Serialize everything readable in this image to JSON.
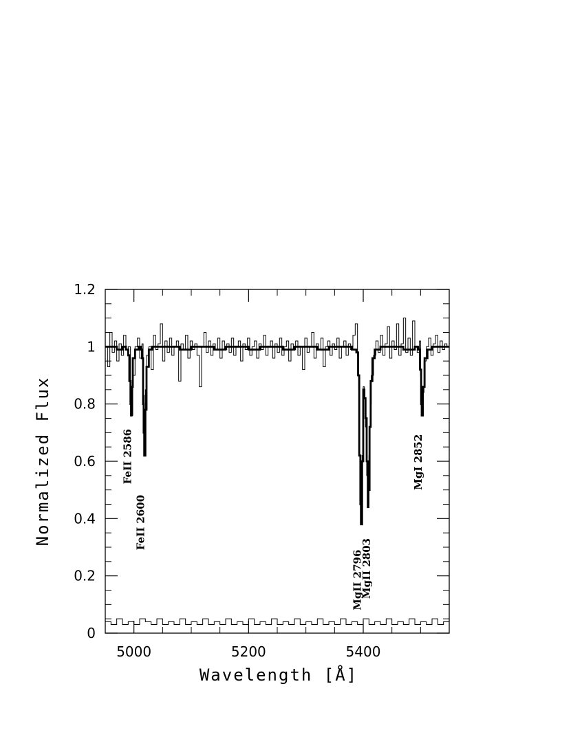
{
  "chart_data": {
    "type": "line",
    "xlabel": "Wavelength [Å]",
    "ylabel": "Normalized Flux",
    "xlim": [
      4950,
      5550
    ],
    "ylim": [
      0,
      1.2
    ],
    "x_ticks": [
      {
        "value": 5000,
        "label": "5000"
      },
      {
        "value": 5200,
        "label": "5200"
      },
      {
        "value": 5400,
        "label": "5400"
      }
    ],
    "y_ticks": [
      {
        "value": 0,
        "label": "0"
      },
      {
        "value": 0.2,
        "label": "0.2"
      },
      {
        "value": 0.4,
        "label": "0.4"
      },
      {
        "value": 0.6,
        "label": "0.6"
      },
      {
        "value": 0.8,
        "label": "0.8"
      },
      {
        "value": 1,
        "label": "1"
      },
      {
        "value": 1.2,
        "label": "1.2"
      }
    ],
    "grid": false,
    "series": [
      {
        "role": "observed spectrum",
        "style": "thin",
        "color": "#000000",
        "points": [
          [
            4950,
            1.0
          ],
          [
            4954,
            0.93
          ],
          [
            4958,
            1.05
          ],
          [
            4962,
            0.98
          ],
          [
            4966,
            1.02
          ],
          [
            4970,
            0.95
          ],
          [
            4974,
            1.01
          ],
          [
            4978,
            0.97
          ],
          [
            4982,
            1.04
          ],
          [
            4986,
            0.99
          ],
          [
            4990,
            1.0
          ],
          [
            4994,
            0.86
          ],
          [
            4996,
            0.76
          ],
          [
            4998,
            0.9
          ],
          [
            5002,
            1.0
          ],
          [
            5006,
            1.03
          ],
          [
            5010,
            0.96
          ],
          [
            5014,
            1.01
          ],
          [
            5016,
            0.83
          ],
          [
            5018,
            0.62
          ],
          [
            5020,
            0.85
          ],
          [
            5022,
            0.97
          ],
          [
            5026,
            1.0
          ],
          [
            5030,
            0.92
          ],
          [
            5034,
            1.04
          ],
          [
            5038,
            0.99
          ],
          [
            5042,
            1.01
          ],
          [
            5046,
            1.08
          ],
          [
            5050,
            0.95
          ],
          [
            5054,
            1.02
          ],
          [
            5058,
            0.98
          ],
          [
            5062,
            1.03
          ],
          [
            5066,
            0.97
          ],
          [
            5070,
            1.0
          ],
          [
            5074,
            1.02
          ],
          [
            5078,
            0.88
          ],
          [
            5082,
            1.01
          ],
          [
            5086,
            0.99
          ],
          [
            5090,
            1.04
          ],
          [
            5094,
            0.96
          ],
          [
            5098,
            1.02
          ],
          [
            5102,
            0.99
          ],
          [
            5106,
            1.01
          ],
          [
            5110,
            0.97
          ],
          [
            5114,
            0.86
          ],
          [
            5118,
            1.0
          ],
          [
            5122,
            1.05
          ],
          [
            5126,
            0.98
          ],
          [
            5130,
            1.02
          ],
          [
            5134,
            0.97
          ],
          [
            5138,
            1.01
          ],
          [
            5142,
            0.99
          ],
          [
            5146,
            1.03
          ],
          [
            5150,
            0.96
          ],
          [
            5154,
            1.02
          ],
          [
            5158,
            0.99
          ],
          [
            5162,
            1.01
          ],
          [
            5166,
            0.98
          ],
          [
            5170,
            1.03
          ],
          [
            5174,
            0.97
          ],
          [
            5178,
            1.0
          ],
          [
            5182,
            1.02
          ],
          [
            5186,
            0.95
          ],
          [
            5190,
            1.01
          ],
          [
            5194,
            0.99
          ],
          [
            5198,
            1.03
          ],
          [
            5202,
            0.97
          ],
          [
            5206,
            1.0
          ],
          [
            5210,
            1.02
          ],
          [
            5214,
            0.96
          ],
          [
            5218,
            1.01
          ],
          [
            5222,
            0.99
          ],
          [
            5226,
            1.04
          ],
          [
            5230,
            0.97
          ],
          [
            5234,
            1.0
          ],
          [
            5238,
            1.02
          ],
          [
            5242,
            0.96
          ],
          [
            5246,
            1.01
          ],
          [
            5250,
            0.98
          ],
          [
            5254,
            1.03
          ],
          [
            5258,
            0.97
          ],
          [
            5262,
            1.0
          ],
          [
            5266,
            1.02
          ],
          [
            5270,
            0.95
          ],
          [
            5274,
            1.01
          ],
          [
            5278,
            0.99
          ],
          [
            5282,
            1.02
          ],
          [
            5286,
            0.97
          ],
          [
            5290,
            1.0
          ],
          [
            5294,
            0.92
          ],
          [
            5298,
            1.03
          ],
          [
            5302,
            0.98
          ],
          [
            5306,
            1.0
          ],
          [
            5310,
            1.05
          ],
          [
            5314,
            0.96
          ],
          [
            5318,
            1.01
          ],
          [
            5322,
            0.99
          ],
          [
            5326,
            1.03
          ],
          [
            5330,
            0.93
          ],
          [
            5334,
            1.0
          ],
          [
            5338,
            1.02
          ],
          [
            5342,
            0.97
          ],
          [
            5346,
            1.01
          ],
          [
            5350,
            0.99
          ],
          [
            5354,
            1.03
          ],
          [
            5358,
            0.96
          ],
          [
            5362,
            1.0
          ],
          [
            5366,
            1.02
          ],
          [
            5370,
            0.97
          ],
          [
            5374,
            1.01
          ],
          [
            5378,
            0.99
          ],
          [
            5382,
            1.04
          ],
          [
            5386,
            1.08
          ],
          [
            5390,
            0.97
          ],
          [
            5392,
            0.85
          ],
          [
            5394,
            0.55
          ],
          [
            5396,
            0.38
          ],
          [
            5398,
            0.62
          ],
          [
            5400,
            0.86
          ],
          [
            5402,
            0.82
          ],
          [
            5404,
            0.72
          ],
          [
            5406,
            0.55
          ],
          [
            5408,
            0.45
          ],
          [
            5410,
            0.62
          ],
          [
            5412,
            0.8
          ],
          [
            5414,
            0.9
          ],
          [
            5418,
            0.97
          ],
          [
            5422,
            1.02
          ],
          [
            5426,
            0.98
          ],
          [
            5430,
            1.04
          ],
          [
            5434,
            0.97
          ],
          [
            5438,
            1.01
          ],
          [
            5442,
            1.07
          ],
          [
            5446,
            0.96
          ],
          [
            5450,
            1.02
          ],
          [
            5454,
            0.99
          ],
          [
            5458,
            1.08
          ],
          [
            5462,
            0.97
          ],
          [
            5466,
            1.01
          ],
          [
            5470,
            1.1
          ],
          [
            5474,
            0.98
          ],
          [
            5478,
            1.03
          ],
          [
            5482,
            0.97
          ],
          [
            5486,
            1.09
          ],
          [
            5490,
            1.0
          ],
          [
            5494,
            0.98
          ],
          [
            5498,
            1.02
          ],
          [
            5500,
            0.9
          ],
          [
            5502,
            0.76
          ],
          [
            5504,
            0.84
          ],
          [
            5506,
            0.95
          ],
          [
            5510,
            1.0
          ],
          [
            5514,
            1.03
          ],
          [
            5518,
            0.97
          ],
          [
            5522,
            1.01
          ],
          [
            5526,
            1.04
          ],
          [
            5530,
            0.98
          ],
          [
            5534,
            1.02
          ],
          [
            5538,
            0.99
          ],
          [
            5542,
            1.01
          ],
          [
            5546,
            1.0
          ],
          [
            5550,
            1.0
          ]
        ]
      },
      {
        "role": "model fit",
        "style": "thick",
        "color": "#000000",
        "points": [
          [
            4950,
            1.0
          ],
          [
            4960,
            1.0
          ],
          [
            4970,
            0.99
          ],
          [
            4980,
            1.0
          ],
          [
            4986,
            0.99
          ],
          [
            4990,
            0.97
          ],
          [
            4992,
            0.88
          ],
          [
            4994,
            0.8
          ],
          [
            4995,
            0.76
          ],
          [
            4996,
            0.86
          ],
          [
            4998,
            0.96
          ],
          [
            5002,
            0.99
          ],
          [
            5008,
            1.0
          ],
          [
            5012,
            0.99
          ],
          [
            5014,
            0.96
          ],
          [
            5016,
            0.8
          ],
          [
            5017,
            0.7
          ],
          [
            5018,
            0.62
          ],
          [
            5020,
            0.78
          ],
          [
            5022,
            0.93
          ],
          [
            5026,
            0.99
          ],
          [
            5032,
            1.0
          ],
          [
            5040,
            1.0
          ],
          [
            5060,
            1.0
          ],
          [
            5080,
            0.99
          ],
          [
            5100,
            1.0
          ],
          [
            5120,
            1.0
          ],
          [
            5140,
            0.99
          ],
          [
            5160,
            1.0
          ],
          [
            5180,
            1.0
          ],
          [
            5200,
            0.99
          ],
          [
            5220,
            1.0
          ],
          [
            5240,
            1.0
          ],
          [
            5260,
            0.99
          ],
          [
            5280,
            1.0
          ],
          [
            5300,
            1.0
          ],
          [
            5320,
            0.99
          ],
          [
            5340,
            1.0
          ],
          [
            5360,
            1.0
          ],
          [
            5380,
            0.99
          ],
          [
            5388,
            0.98
          ],
          [
            5391,
            0.9
          ],
          [
            5393,
            0.62
          ],
          [
            5395,
            0.45
          ],
          [
            5396,
            0.38
          ],
          [
            5398,
            0.6
          ],
          [
            5400,
            0.85
          ],
          [
            5402,
            0.82
          ],
          [
            5404,
            0.75
          ],
          [
            5406,
            0.6
          ],
          [
            5408,
            0.44
          ],
          [
            5409,
            0.5
          ],
          [
            5411,
            0.72
          ],
          [
            5413,
            0.88
          ],
          [
            5416,
            0.96
          ],
          [
            5420,
            0.99
          ],
          [
            5430,
            1.0
          ],
          [
            5450,
            1.0
          ],
          [
            5470,
            0.99
          ],
          [
            5490,
            1.0
          ],
          [
            5496,
            0.99
          ],
          [
            5499,
            0.92
          ],
          [
            5501,
            0.8
          ],
          [
            5502,
            0.76
          ],
          [
            5504,
            0.86
          ],
          [
            5507,
            0.96
          ],
          [
            5512,
            0.99
          ],
          [
            5520,
            1.0
          ],
          [
            5535,
            1.0
          ],
          [
            5550,
            1.0
          ]
        ]
      },
      {
        "role": "error spectrum",
        "style": "thin",
        "color": "#000000",
        "points": [
          [
            4950,
            0.04
          ],
          [
            4960,
            0.03
          ],
          [
            4970,
            0.05
          ],
          [
            4980,
            0.03
          ],
          [
            4990,
            0.04
          ],
          [
            5000,
            0.03
          ],
          [
            5010,
            0.05
          ],
          [
            5020,
            0.04
          ],
          [
            5030,
            0.03
          ],
          [
            5040,
            0.05
          ],
          [
            5050,
            0.03
          ],
          [
            5060,
            0.04
          ],
          [
            5070,
            0.03
          ],
          [
            5080,
            0.05
          ],
          [
            5090,
            0.03
          ],
          [
            5100,
            0.04
          ],
          [
            5110,
            0.03
          ],
          [
            5120,
            0.05
          ],
          [
            5130,
            0.03
          ],
          [
            5140,
            0.04
          ],
          [
            5150,
            0.03
          ],
          [
            5160,
            0.05
          ],
          [
            5170,
            0.03
          ],
          [
            5180,
            0.04
          ],
          [
            5190,
            0.03
          ],
          [
            5200,
            0.05
          ],
          [
            5210,
            0.03
          ],
          [
            5220,
            0.04
          ],
          [
            5230,
            0.03
          ],
          [
            5240,
            0.05
          ],
          [
            5250,
            0.03
          ],
          [
            5260,
            0.04
          ],
          [
            5270,
            0.03
          ],
          [
            5280,
            0.05
          ],
          [
            5290,
            0.03
          ],
          [
            5300,
            0.04
          ],
          [
            5310,
            0.03
          ],
          [
            5320,
            0.05
          ],
          [
            5330,
            0.03
          ],
          [
            5340,
            0.04
          ],
          [
            5350,
            0.03
          ],
          [
            5360,
            0.05
          ],
          [
            5370,
            0.03
          ],
          [
            5380,
            0.04
          ],
          [
            5390,
            0.03
          ],
          [
            5400,
            0.05
          ],
          [
            5410,
            0.03
          ],
          [
            5420,
            0.04
          ],
          [
            5430,
            0.03
          ],
          [
            5440,
            0.05
          ],
          [
            5450,
            0.03
          ],
          [
            5460,
            0.04
          ],
          [
            5470,
            0.03
          ],
          [
            5480,
            0.05
          ],
          [
            5490,
            0.03
          ],
          [
            5500,
            0.04
          ],
          [
            5510,
            0.03
          ],
          [
            5520,
            0.05
          ],
          [
            5530,
            0.03
          ],
          [
            5540,
            0.04
          ],
          [
            5550,
            0.04
          ]
        ]
      }
    ],
    "annotations": [
      {
        "text": "FeII  2586",
        "x": 4995,
        "y": 0.52
      },
      {
        "text": "FeII  2600",
        "x": 5018,
        "y": 0.29
      },
      {
        "text": "MgII  2796",
        "x": 5396,
        "y": 0.08
      },
      {
        "text": "MgII  2803",
        "x": 5412,
        "y": 0.12
      },
      {
        "text": "MgI  2852",
        "x": 5502,
        "y": 0.5
      }
    ]
  }
}
